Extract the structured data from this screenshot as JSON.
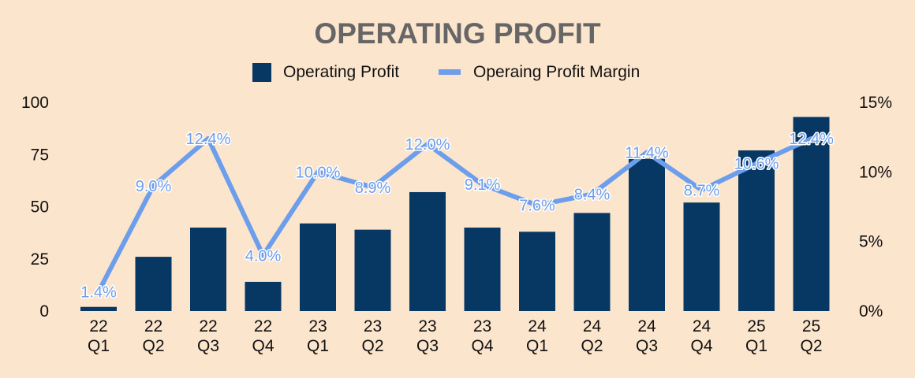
{
  "colors": {
    "background": "#FCE5CD",
    "bar": "#073763",
    "line": "#6D9EEB",
    "title": "#666666",
    "text": "#111111"
  },
  "chart_data": {
    "type": "bar",
    "title": "OPERATING PROFIT",
    "categories": [
      [
        "22",
        "Q1"
      ],
      [
        "22",
        "Q2"
      ],
      [
        "22",
        "Q3"
      ],
      [
        "22",
        "Q4"
      ],
      [
        "23",
        "Q1"
      ],
      [
        "23",
        "Q2"
      ],
      [
        "23",
        "Q3"
      ],
      [
        "23",
        "Q4"
      ],
      [
        "24",
        "Q1"
      ],
      [
        "24",
        "Q2"
      ],
      [
        "24",
        "Q3"
      ],
      [
        "24",
        "Q4"
      ],
      [
        "25",
        "Q1"
      ],
      [
        "25",
        "Q2"
      ]
    ],
    "series": [
      {
        "name": "Operating Profit",
        "type": "bar",
        "axis": "left",
        "values": [
          2,
          26,
          40,
          14,
          42,
          39,
          57,
          40,
          38,
          47,
          73,
          52,
          77,
          93
        ]
      },
      {
        "name": "Operaing Profit Margin",
        "type": "line",
        "axis": "right",
        "values": [
          1.4,
          9.0,
          12.4,
          4.0,
          10.0,
          8.9,
          12.0,
          9.1,
          7.6,
          8.4,
          11.4,
          8.7,
          10.6,
          12.4
        ],
        "labels": [
          "1.4%",
          "9.0%",
          "12.4%",
          "4.0%",
          "10.0%",
          "8.9%",
          "12.0%",
          "9.1%",
          "7.6%",
          "8.4%",
          "11.4%",
          "8.7%",
          "10.6%",
          "12.4%"
        ]
      }
    ],
    "y_left": {
      "ylim": [
        0,
        100
      ],
      "ticks": [
        0,
        25,
        50,
        75,
        100
      ],
      "tick_labels": [
        "0",
        "25",
        "50",
        "75",
        "100"
      ]
    },
    "y_right": {
      "ylim": [
        0,
        15
      ],
      "ticks": [
        0,
        5,
        10,
        15
      ],
      "tick_labels": [
        "0%",
        "5%",
        "10%",
        "15%"
      ]
    },
    "legend": {
      "position": "top-center",
      "items": [
        {
          "label": "Operating Profit",
          "marker": "square"
        },
        {
          "label": "Operaing Profit Margin",
          "marker": "line"
        }
      ]
    },
    "grid": false
  }
}
